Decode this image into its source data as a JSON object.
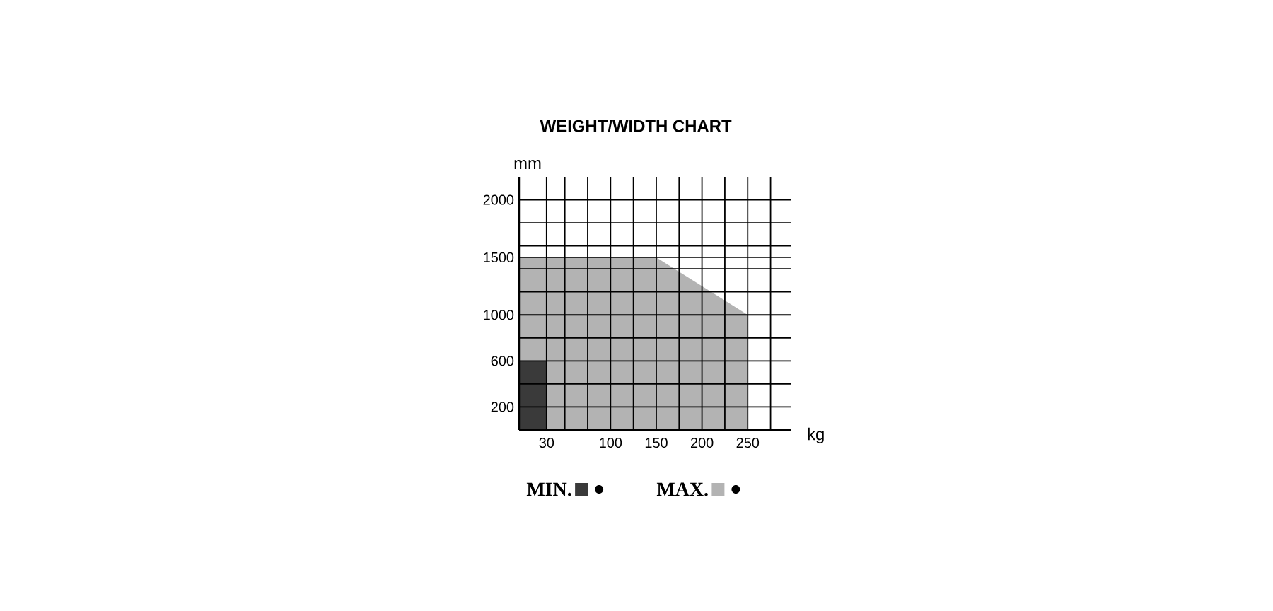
{
  "chart_data": {
    "type": "area",
    "title": "WEIGHT/WIDTH CHART",
    "xlabel": "kg",
    "ylabel": "mm",
    "xlim": [
      0,
      297
    ],
    "ylim": [
      0,
      2200
    ],
    "xticks": [
      30,
      {
        "value": 50,
        "label": null
      },
      {
        "value": 75,
        "label": null
      },
      100,
      {
        "value": 125,
        "label": null
      },
      150,
      {
        "value": 175,
        "label": null
      },
      200,
      {
        "value": 225,
        "label": null
      },
      250,
      {
        "value": 275,
        "label": null
      }
    ],
    "yticks": [
      200,
      {
        "value": 400,
        "label": null
      },
      600,
      {
        "value": 800,
        "label": null
      },
      1000,
      {
        "value": 1200,
        "label": null
      },
      {
        "value": 1400,
        "label": null
      },
      1500,
      {
        "value": 1600,
        "label": null
      },
      {
        "value": 1800,
        "label": null
      },
      2000
    ],
    "grid": true,
    "legend": "bottom",
    "series": [
      {
        "name": "MAX.",
        "color": "#b3b3b3",
        "x": [
          0,
          150,
          250
        ],
        "values": [
          1500,
          1500,
          1000
        ]
      },
      {
        "name": "MIN.",
        "color": "#3a3a3a",
        "x": [
          0,
          30
        ],
        "values": [
          600,
          600
        ]
      }
    ]
  }
}
